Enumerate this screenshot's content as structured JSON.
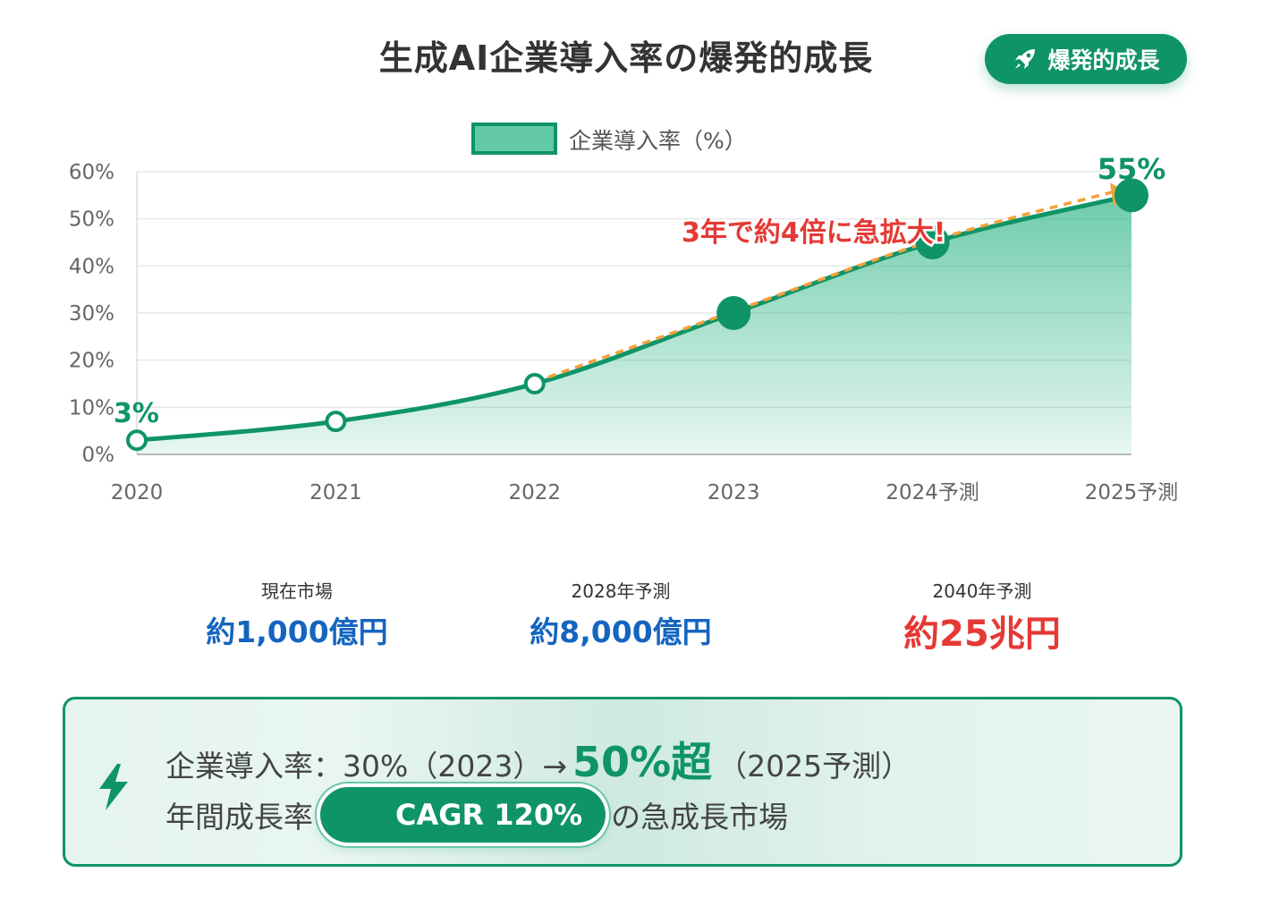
{
  "title": "生成AI企業導入率の爆発的成長",
  "badge": {
    "label": "爆発的成長",
    "icon": "rocket-icon"
  },
  "chart_data": {
    "type": "area",
    "categories": [
      "2020",
      "2021",
      "2022",
      "2023",
      "2024予測",
      "2025予測"
    ],
    "series": [
      {
        "name": "企業導入率（%）",
        "values": [
          3,
          7,
          15,
          30,
          45,
          55
        ]
      }
    ],
    "y_ticks": [
      "0%",
      "10%",
      "20%",
      "30%",
      "40%",
      "50%",
      "60%"
    ],
    "ylim": [
      0,
      60
    ],
    "grid": true,
    "legend": "top-center",
    "start_label": "3%",
    "end_label": "55%",
    "annotation": "3年で約4倍に急拡大!",
    "colors": {
      "line": "#0f9467",
      "fill": "#3dbb8e",
      "trend": "#f5a03a",
      "annotation": "#e53935"
    }
  },
  "stats": [
    {
      "label": "現在市場",
      "value": "約1,000億円"
    },
    {
      "label": "2028年予測",
      "value": "約8,000億円"
    },
    {
      "label": "2040年予測",
      "value": "約25兆円"
    }
  ],
  "callout": {
    "icon": "lightning-icon",
    "line1_prefix": "企業導入率：30%（2023）→",
    "line1_highlight": "50%超",
    "line1_suffix": "（2025予測）",
    "line2_prefix": "年間成長率",
    "cagr_badge": "CAGR 120%",
    "line2_suffix": "の急成長市場"
  }
}
